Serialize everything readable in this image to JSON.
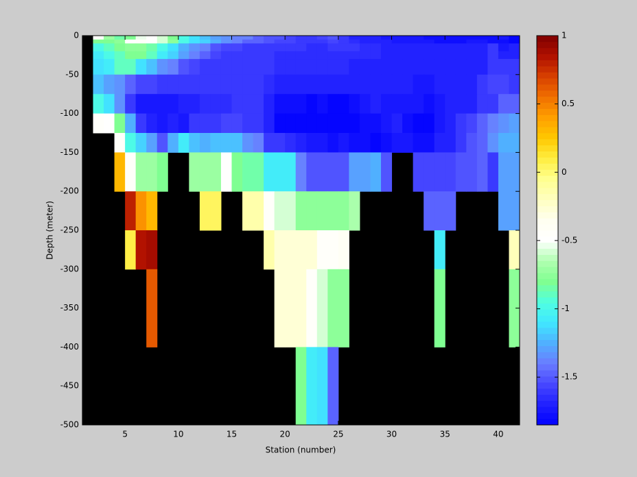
{
  "chart_data": {
    "type": "heatmap",
    "xlabel": "Station (number)",
    "ylabel": "Depth (meter)",
    "x": [
      2,
      3,
      4,
      5,
      6,
      7,
      8,
      9,
      10,
      11,
      12,
      13,
      14,
      15,
      16,
      17,
      18,
      19,
      20,
      21,
      22,
      23,
      24,
      25,
      26,
      27,
      28,
      29,
      30,
      31,
      32,
      33,
      34,
      35,
      36,
      37,
      38,
      39,
      40,
      41,
      42
    ],
    "y": [
      0,
      -5,
      -10,
      -20,
      -30,
      -50,
      -75,
      -100,
      -125,
      -150,
      -200,
      -250,
      -300,
      -400,
      -500
    ],
    "z": [
      [
        -0.45,
        -0.7,
        -0.85,
        -0.8,
        -0.55,
        -0.5,
        -0.6,
        -0.8,
        -1.0,
        -1.1,
        -1.2,
        -1.3,
        -1.35,
        -1.4,
        -1.4,
        -1.45,
        -1.5,
        -1.5,
        -1.55,
        -1.6,
        -1.6,
        -1.55,
        -1.5,
        -1.6,
        -1.7,
        -1.7,
        -1.7,
        -1.75,
        -1.75,
        -1.75,
        -1.75,
        -1.8,
        -1.8,
        -1.8,
        -1.8,
        -1.8,
        -1.8,
        -1.8,
        -1.75,
        -1.85
      ],
      [
        -0.8,
        -0.8,
        -0.75,
        -0.5,
        -0.45,
        -0.5,
        -0.6,
        -0.75,
        -1.0,
        -1.1,
        -1.15,
        -1.25,
        -1.35,
        -1.4,
        -1.45,
        -1.45,
        -1.5,
        -1.55,
        -1.55,
        -1.6,
        -1.6,
        -1.6,
        -1.55,
        -1.6,
        -1.65,
        -1.7,
        -1.7,
        -1.7,
        -1.75,
        -1.75,
        -1.75,
        -1.75,
        -1.8,
        -1.8,
        -1.8,
        -1.75,
        -1.75,
        -1.8,
        -1.8,
        -1.85
      ],
      [
        -1.0,
        -0.9,
        -0.8,
        -0.75,
        -0.75,
        -0.85,
        -1.0,
        -1.1,
        -1.25,
        -1.35,
        -1.4,
        -1.5,
        -1.55,
        -1.55,
        -1.6,
        -1.6,
        -1.6,
        -1.6,
        -1.6,
        -1.6,
        -1.65,
        -1.65,
        -1.6,
        -1.6,
        -1.6,
        -1.65,
        -1.65,
        -1.7,
        -1.7,
        -1.7,
        -1.7,
        -1.7,
        -1.7,
        -1.7,
        -1.7,
        -1.7,
        -1.7,
        -1.6,
        -1.75,
        -1.7
      ],
      [
        -1.05,
        -1.0,
        -0.9,
        -0.8,
        -0.8,
        -0.9,
        -1.05,
        -1.15,
        -1.3,
        -1.4,
        -1.45,
        -1.55,
        -1.6,
        -1.6,
        -1.6,
        -1.6,
        -1.6,
        -1.65,
        -1.65,
        -1.65,
        -1.65,
        -1.65,
        -1.65,
        -1.65,
        -1.65,
        -1.65,
        -1.65,
        -1.7,
        -1.7,
        -1.7,
        -1.7,
        -1.7,
        -1.7,
        -1.7,
        -1.7,
        -1.7,
        -1.7,
        -1.6,
        -1.7,
        -1.7
      ],
      [
        -1.1,
        -1.05,
        -0.9,
        -0.9,
        -1.1,
        -1.2,
        -1.35,
        -1.4,
        -1.5,
        -1.55,
        -1.6,
        -1.6,
        -1.6,
        -1.6,
        -1.6,
        -1.6,
        -1.6,
        -1.65,
        -1.65,
        -1.65,
        -1.65,
        -1.65,
        -1.65,
        -1.65,
        -1.7,
        -1.7,
        -1.7,
        -1.7,
        -1.7,
        -1.7,
        -1.7,
        -1.7,
        -1.7,
        -1.7,
        -1.7,
        -1.7,
        -1.7,
        -1.6,
        -1.6,
        -1.6
      ],
      [
        -1.2,
        -1.3,
        -1.35,
        -1.45,
        -1.55,
        -1.55,
        -1.6,
        -1.6,
        -1.6,
        -1.6,
        -1.6,
        -1.6,
        -1.6,
        -1.6,
        -1.6,
        -1.6,
        -1.65,
        -1.7,
        -1.7,
        -1.7,
        -1.7,
        -1.7,
        -1.7,
        -1.7,
        -1.7,
        -1.7,
        -1.7,
        -1.7,
        -1.7,
        -1.7,
        -1.75,
        -1.75,
        -1.7,
        -1.7,
        -1.7,
        -1.7,
        -1.6,
        -1.55,
        -1.55,
        -1.6
      ],
      [
        -1.0,
        -1.1,
        -1.35,
        -1.6,
        -1.75,
        -1.75,
        -1.75,
        -1.75,
        -1.7,
        -1.7,
        -1.65,
        -1.65,
        -1.65,
        -1.6,
        -1.6,
        -1.6,
        -1.7,
        -1.8,
        -1.8,
        -1.8,
        -1.85,
        -1.8,
        -1.85,
        -1.85,
        -1.8,
        -1.75,
        -1.7,
        -1.75,
        -1.75,
        -1.75,
        -1.75,
        -1.8,
        -1.75,
        -1.7,
        -1.7,
        -1.7,
        -1.6,
        -1.6,
        -1.45,
        -1.45
      ],
      [
        -0.45,
        -0.5,
        -0.8,
        -1.25,
        -1.6,
        -1.7,
        -1.75,
        -1.7,
        -1.75,
        -1.6,
        -1.6,
        -1.6,
        -1.55,
        -1.55,
        -1.6,
        -1.6,
        -1.7,
        -1.85,
        -1.85,
        -1.85,
        -1.85,
        -1.85,
        -1.85,
        -1.85,
        -1.85,
        -1.8,
        -1.8,
        -1.75,
        -1.7,
        -1.8,
        -1.85,
        -1.85,
        -1.75,
        -1.7,
        -1.6,
        -1.55,
        -1.45,
        -1.4,
        -1.35,
        -1.3
      ],
      [
        null,
        null,
        -0.45,
        -1.0,
        -1.15,
        -1.3,
        -1.5,
        -1.25,
        -1.05,
        -1.2,
        -1.25,
        -1.2,
        -1.2,
        -1.2,
        -1.35,
        -1.4,
        -1.6,
        -1.6,
        -1.65,
        -1.7,
        -1.75,
        -1.75,
        -1.8,
        -1.75,
        -1.8,
        -1.8,
        -1.85,
        -1.8,
        -1.75,
        -1.75,
        -1.8,
        -1.8,
        -1.7,
        -1.7,
        -1.6,
        -1.5,
        -1.45,
        -1.35,
        -1.25,
        -1.25
      ],
      [
        null,
        null,
        0.3,
        -0.45,
        -0.7,
        -0.7,
        -0.8,
        null,
        null,
        -0.7,
        -0.7,
        -0.7,
        -0.5,
        -0.8,
        -0.85,
        -0.85,
        -1.05,
        -1.05,
        -1.05,
        -1.4,
        -1.5,
        -1.5,
        -1.5,
        -1.5,
        -1.3,
        -1.3,
        -1.25,
        -1.5,
        null,
        null,
        -1.55,
        -1.55,
        -1.55,
        -1.55,
        -1.5,
        -1.5,
        -1.45,
        -1.6,
        -1.3,
        -1.3
      ],
      [
        null,
        null,
        null,
        0.8,
        0.45,
        0.3,
        null,
        null,
        null,
        null,
        0.05,
        0.05,
        null,
        null,
        -0.15,
        -0.15,
        -0.45,
        -0.6,
        -0.6,
        -0.75,
        -0.75,
        -0.75,
        -0.75,
        -0.75,
        -0.65,
        null,
        null,
        null,
        null,
        null,
        null,
        -1.45,
        -1.45,
        -1.45,
        null,
        null,
        null,
        null,
        -1.3,
        -1.3
      ],
      [
        null,
        null,
        null,
        0.1,
        0.85,
        0.9,
        null,
        null,
        null,
        null,
        null,
        null,
        null,
        null,
        null,
        null,
        -0.15,
        -0.25,
        -0.25,
        -0.25,
        -0.25,
        -0.45,
        -0.45,
        -0.4,
        null,
        null,
        null,
        null,
        null,
        null,
        null,
        null,
        -1.05,
        null,
        null,
        null,
        null,
        null,
        null,
        -0.2
      ],
      [
        null,
        null,
        null,
        null,
        null,
        0.6,
        null,
        null,
        null,
        null,
        null,
        null,
        null,
        null,
        null,
        null,
        null,
        -0.25,
        -0.25,
        -0.25,
        -0.45,
        -0.6,
        -0.75,
        -0.75,
        null,
        null,
        null,
        null,
        null,
        null,
        null,
        null,
        -0.8,
        null,
        null,
        null,
        null,
        null,
        null,
        -0.75
      ],
      [
        null,
        null,
        null,
        null,
        null,
        null,
        null,
        null,
        null,
        null,
        null,
        null,
        null,
        null,
        null,
        null,
        null,
        null,
        null,
        -0.8,
        -1.05,
        -1.1,
        -1.45,
        null,
        null,
        null,
        null,
        null,
        null,
        null,
        null,
        null,
        null,
        null,
        null,
        null,
        null,
        null,
        null,
        null
      ]
    ],
    "xlim": [
      1,
      42
    ],
    "xticks": [
      5,
      10,
      15,
      20,
      25,
      30,
      35,
      40
    ],
    "ylim": [
      -500,
      0
    ],
    "yticks": [
      0,
      -50,
      -100,
      -150,
      -200,
      -250,
      -300,
      -350,
      -400,
      -450,
      -500
    ],
    "clim": [
      -1.85,
      1
    ],
    "cticks": [
      -1.5,
      -1,
      -0.5,
      0,
      0.5,
      1
    ],
    "colormap": [
      "#0000ff",
      "#2020ff",
      "#4848ff",
      "#6a7cff",
      "#50b0ff",
      "#40e8ff",
      "#50ffe0",
      "#80ff90",
      "#b0ffb0",
      "#ffffff",
      "#fffff0",
      "#ffffc0",
      "#ffff90",
      "#ffee40",
      "#ffc800",
      "#ffa000",
      "#f07000",
      "#d84000",
      "#b01000",
      "#800000"
    ],
    "levels": 64,
    "missing_color": "#000000"
  }
}
